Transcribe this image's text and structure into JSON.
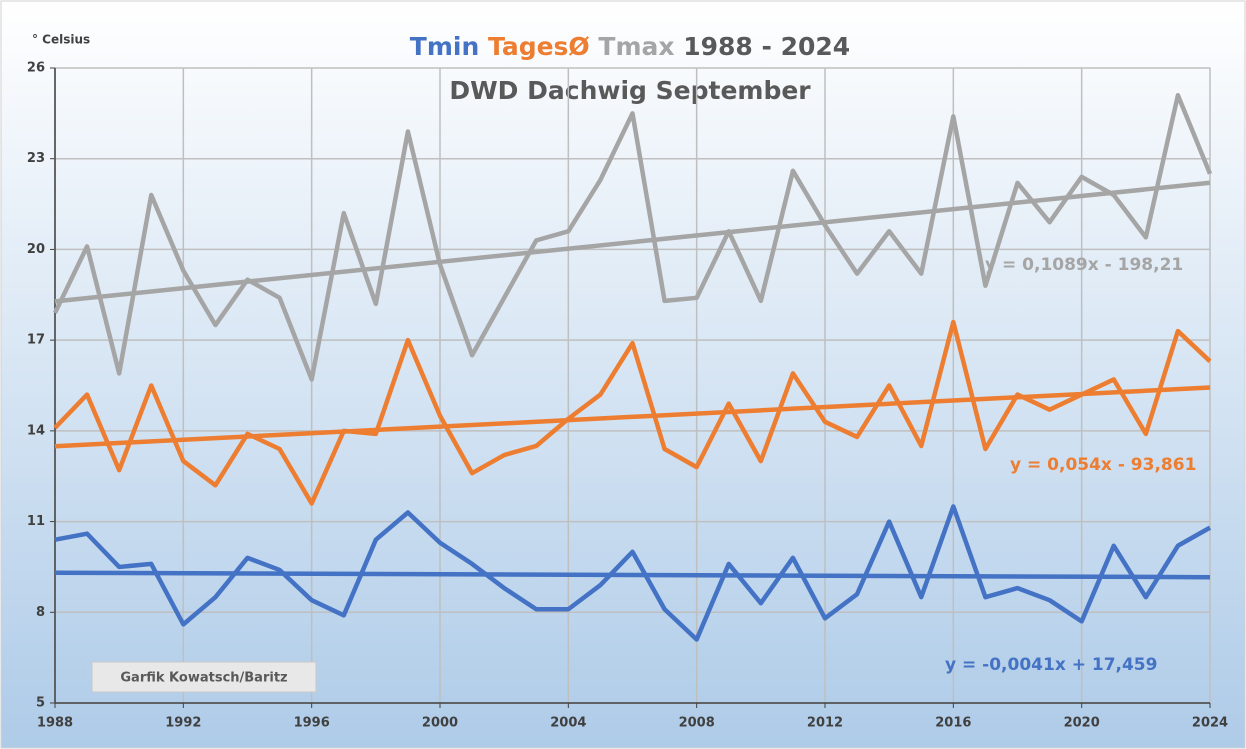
{
  "chart_data": {
    "type": "line",
    "title": "1988 - 2024",
    "subtitle": "DWD Dachwig September",
    "y_label": "° Celsius",
    "annotation": "Garfik Kowatsch/Baritz",
    "x": [
      1988,
      1989,
      1990,
      1991,
      1992,
      1993,
      1994,
      1995,
      1996,
      1997,
      1998,
      1999,
      2000,
      2001,
      2002,
      2003,
      2004,
      2005,
      2006,
      2007,
      2008,
      2009,
      2010,
      2011,
      2012,
      2013,
      2014,
      2015,
      2016,
      2017,
      2018,
      2019,
      2020,
      2021,
      2022,
      2023,
      2024
    ],
    "series": [
      {
        "name": "Tmin",
        "color": "#4472c4",
        "values": [
          10.4,
          10.6,
          9.5,
          9.6,
          7.6,
          8.5,
          9.8,
          9.4,
          8.4,
          7.9,
          10.4,
          11.3,
          10.3,
          9.6,
          8.8,
          8.1,
          8.1,
          8.9,
          10.0,
          8.1,
          7.1,
          9.6,
          8.3,
          9.8,
          7.8,
          8.6,
          11.0,
          8.5,
          11.5,
          8.5,
          8.8,
          8.4,
          7.7,
          10.2,
          8.5,
          10.2,
          10.8
        ],
        "trendline": {
          "slope": -0.0041,
          "intercept": 17.459,
          "label": "y = -0,0041x + 17,459"
        }
      },
      {
        "name": "TagesØ",
        "color": "#ed7d31",
        "values": [
          14.1,
          15.2,
          12.7,
          15.5,
          13.0,
          12.2,
          13.9,
          13.4,
          11.6,
          14.0,
          13.9,
          17.0,
          14.5,
          12.6,
          13.2,
          13.5,
          14.4,
          15.2,
          16.9,
          13.4,
          12.8,
          14.9,
          13.0,
          15.9,
          14.3,
          13.8,
          15.5,
          13.5,
          17.6,
          13.4,
          15.2,
          14.7,
          15.2,
          15.7,
          13.9,
          17.3,
          16.3
        ],
        "trendline": {
          "slope": 0.054,
          "intercept": -93.861,
          "label": "y = 0,054x - 93,861"
        }
      },
      {
        "name": "Tmax",
        "color": "#a5a5a5",
        "values": [
          17.9,
          20.1,
          15.9,
          21.8,
          19.3,
          17.5,
          19.0,
          18.4,
          15.7,
          21.2,
          18.2,
          23.9,
          19.5,
          16.5,
          18.4,
          20.3,
          20.6,
          22.3,
          24.5,
          18.3,
          18.4,
          20.6,
          18.3,
          22.6,
          20.8,
          19.2,
          20.6,
          19.2,
          24.4,
          18.8,
          22.2,
          20.9,
          22.4,
          21.8,
          20.4,
          25.1,
          22.5
        ],
        "trendline": {
          "slope": 0.1089,
          "intercept": -198.21,
          "label": "y = 0,1089x - 198,21"
        }
      }
    ],
    "xlim": [
      1988,
      2024
    ],
    "xticks": [
      1988,
      1992,
      1996,
      2000,
      2004,
      2008,
      2012,
      2016,
      2020,
      2024
    ],
    "ylim": [
      5,
      26
    ],
    "yticks": [
      5,
      8,
      11,
      14,
      17,
      20,
      23,
      26
    ],
    "grid": true
  }
}
